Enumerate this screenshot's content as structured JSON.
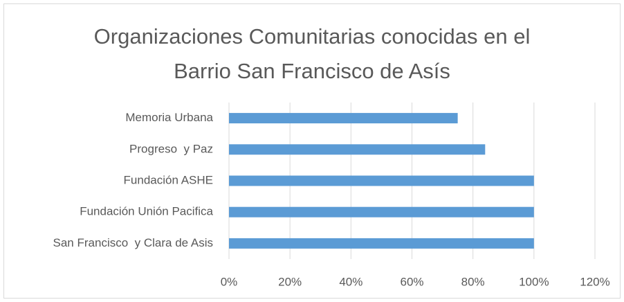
{
  "chart_data": {
    "type": "bar",
    "orientation": "horizontal",
    "title": "Organizaciones Comunitarias conocidas en el Barrio San Francisco de Asís",
    "categories": [
      "Memoria Urbana",
      "Progreso  y Paz",
      "Fundación ASHE",
      "Fundación Unión Pacifica",
      "San Francisco  y Clara de Asis"
    ],
    "values": [
      75,
      84,
      100,
      100,
      100
    ],
    "color": "#5b9bd5",
    "xlim": [
      0,
      120
    ],
    "xticks": [
      {
        "value": 0,
        "label": "0%"
      },
      {
        "value": 20,
        "label": "20%"
      },
      {
        "value": 40,
        "label": "40%"
      },
      {
        "value": 60,
        "label": "60%"
      },
      {
        "value": 80,
        "label": "80%"
      },
      {
        "value": 100,
        "label": "100%"
      },
      {
        "value": 120,
        "label": "120%"
      }
    ],
    "grid": true
  }
}
